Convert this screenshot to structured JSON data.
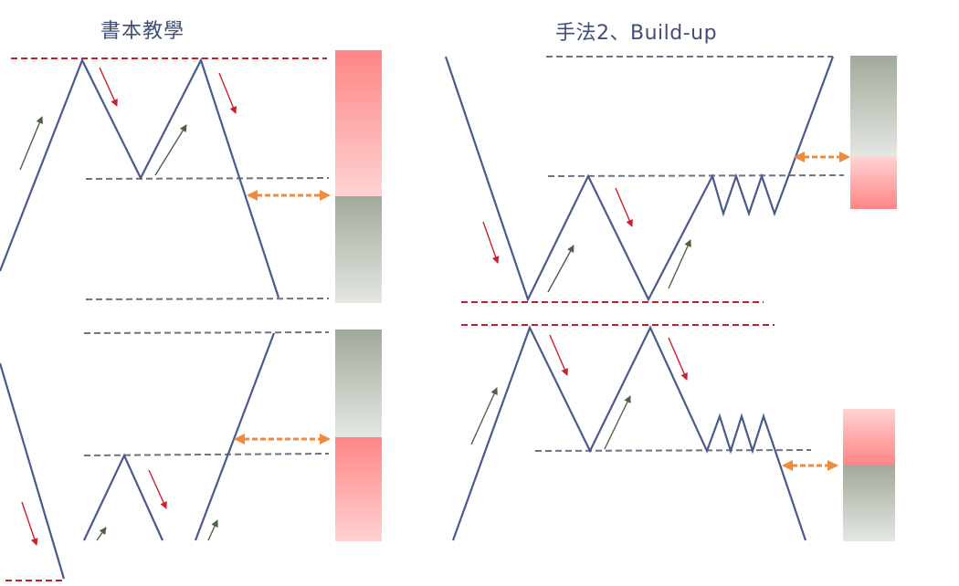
{
  "titles": {
    "left": "書本教學",
    "right": "手法2、Build-up"
  },
  "colors": {
    "price_line": "#4a5a8a",
    "red_dash": "#c0202e",
    "gray_dash": "#6d7285",
    "red_arrow": "#cc1f2c",
    "green_arrow": "#4f6045",
    "orange_arrow": "#f08a3c",
    "box_red_top": "#ff8585",
    "box_red_bottom": "#ffd0d0",
    "box_gray_top": "#a2ab9c",
    "box_gray_bottom": "#e3e6e1"
  }
}
